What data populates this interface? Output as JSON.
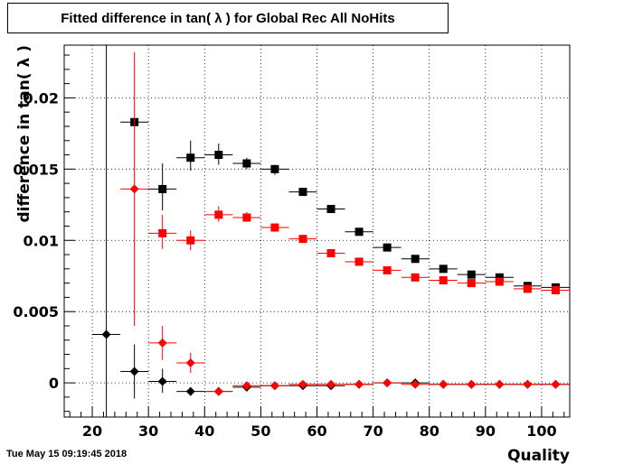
{
  "title": "Fitted difference in tan( λ ) for Global Rec All NoHits",
  "timestamp": "Tue May 15 09:19:45 2018",
  "chart_data": {
    "type": "scatter",
    "title": "Fitted difference in tan( λ ) for Global Rec All NoHits",
    "xlabel": "Quality",
    "ylabel": "difference in tan( λ )",
    "xlim": [
      15,
      105
    ],
    "ylim": [
      -0.0024,
      0.0237
    ],
    "grid": true,
    "x_ticks": [
      "20",
      "30",
      "40",
      "50",
      "60",
      "70",
      "80",
      "90",
      "100"
    ],
    "x_tick_values": [
      20,
      30,
      40,
      50,
      60,
      70,
      80,
      90,
      100
    ],
    "y_ticks": [
      "0",
      "0.005",
      "0.01",
      "0.015",
      "0.02"
    ],
    "y_tick_values": [
      0,
      0.005,
      0.01,
      0.015,
      0.02
    ],
    "series": [
      {
        "color": "#000000",
        "marker": "square",
        "points": [
          {
            "x": 27.5,
            "y": 0.0183,
            "xerr": 2.5,
            "ylo": 0.0183,
            "yhi": 0.0183
          },
          {
            "x": 32.5,
            "y": 0.0136,
            "xerr": 2.5,
            "ylo": 0.0121,
            "yhi": 0.0154
          },
          {
            "x": 37.5,
            "y": 0.0158,
            "xerr": 2.5,
            "ylo": 0.0149,
            "yhi": 0.017
          },
          {
            "x": 42.5,
            "y": 0.016,
            "xerr": 2.5,
            "ylo": 0.0153,
            "yhi": 0.0168
          },
          {
            "x": 47.5,
            "y": 0.0154,
            "xerr": 2.5,
            "ylo": 0.015,
            "yhi": 0.0158
          },
          {
            "x": 52.5,
            "y": 0.015,
            "xerr": 2.5,
            "ylo": 0.0146,
            "yhi": 0.0153
          },
          {
            "x": 57.5,
            "y": 0.0134,
            "xerr": 2.5,
            "ylo": 0.0132,
            "yhi": 0.0136
          },
          {
            "x": 62.5,
            "y": 0.0122,
            "xerr": 2.5,
            "ylo": 0.0121,
            "yhi": 0.0123
          },
          {
            "x": 67.5,
            "y": 0.0106,
            "xerr": 2.5,
            "ylo": 0.0105,
            "yhi": 0.0107
          },
          {
            "x": 72.5,
            "y": 0.0095,
            "xerr": 2.5,
            "ylo": 0.0094,
            "yhi": 0.0096
          },
          {
            "x": 77.5,
            "y": 0.0087,
            "xerr": 2.5,
            "ylo": 0.0086,
            "yhi": 0.0088
          },
          {
            "x": 82.5,
            "y": 0.008,
            "xerr": 2.5,
            "ylo": 0.0079,
            "yhi": 0.0081
          },
          {
            "x": 87.5,
            "y": 0.0076,
            "xerr": 2.5,
            "ylo": 0.0075,
            "yhi": 0.0077
          },
          {
            "x": 92.5,
            "y": 0.0074,
            "xerr": 2.5,
            "ylo": 0.0073,
            "yhi": 0.0075
          },
          {
            "x": 97.5,
            "y": 0.0068,
            "xerr": 2.5,
            "ylo": 0.0067,
            "yhi": 0.0069
          },
          {
            "x": 102.5,
            "y": 0.0067,
            "xerr": 2.5,
            "ylo": 0.0066,
            "yhi": 0.0068
          }
        ]
      },
      {
        "color": "#ff0000",
        "marker": "square",
        "points": [
          {
            "x": 32.5,
            "y": 0.0105,
            "xerr": 2.5,
            "ylo": 0.0094,
            "yhi": 0.0118
          },
          {
            "x": 37.5,
            "y": 0.01,
            "xerr": 2.5,
            "ylo": 0.0093,
            "yhi": 0.0107
          },
          {
            "x": 42.5,
            "y": 0.0118,
            "xerr": 2.5,
            "ylo": 0.0113,
            "yhi": 0.0124
          },
          {
            "x": 47.5,
            "y": 0.0116,
            "xerr": 2.5,
            "ylo": 0.0113,
            "yhi": 0.012
          },
          {
            "x": 52.5,
            "y": 0.0109,
            "xerr": 2.5,
            "ylo": 0.0107,
            "yhi": 0.0111
          },
          {
            "x": 57.5,
            "y": 0.0101,
            "xerr": 2.5,
            "ylo": 0.01,
            "yhi": 0.0102
          },
          {
            "x": 62.5,
            "y": 0.0091,
            "xerr": 2.5,
            "ylo": 0.009,
            "yhi": 0.0092
          },
          {
            "x": 67.5,
            "y": 0.0085,
            "xerr": 2.5,
            "ylo": 0.0084,
            "yhi": 0.0086
          },
          {
            "x": 72.5,
            "y": 0.0079,
            "xerr": 2.5,
            "ylo": 0.0078,
            "yhi": 0.008
          },
          {
            "x": 77.5,
            "y": 0.0074,
            "xerr": 2.5,
            "ylo": 0.0073,
            "yhi": 0.0075
          },
          {
            "x": 82.5,
            "y": 0.0072,
            "xerr": 2.5,
            "ylo": 0.0071,
            "yhi": 0.0073
          },
          {
            "x": 87.5,
            "y": 0.007,
            "xerr": 2.5,
            "ylo": 0.0069,
            "yhi": 0.0071
          },
          {
            "x": 92.5,
            "y": 0.0071,
            "xerr": 2.5,
            "ylo": 0.007,
            "yhi": 0.0072
          },
          {
            "x": 97.5,
            "y": 0.0066,
            "xerr": 2.5,
            "ylo": 0.0065,
            "yhi": 0.0067
          },
          {
            "x": 102.5,
            "y": 0.0065,
            "xerr": 2.5,
            "ylo": 0.0064,
            "yhi": 0.0066
          }
        ]
      },
      {
        "color": "#000000",
        "marker": "diamond",
        "points": [
          {
            "x": 22.5,
            "y": 0.0034,
            "xerr": 2.5,
            "ylo": -0.0025,
            "yhi": 0.0237
          },
          {
            "x": 27.5,
            "y": 0.0008,
            "xerr": 2.5,
            "ylo": -0.0011,
            "yhi": 0.0027
          },
          {
            "x": 32.5,
            "y": 0.0001,
            "xerr": 2.5,
            "ylo": -0.0007,
            "yhi": 0.001
          },
          {
            "x": 37.5,
            "y": -0.0006,
            "xerr": 2.5,
            "ylo": -0.0009,
            "yhi": -0.0003
          },
          {
            "x": 42.5,
            "y": -0.0006,
            "xerr": 2.5,
            "ylo": -0.0008,
            "yhi": -0.0004
          },
          {
            "x": 47.5,
            "y": -0.0003,
            "xerr": 2.5,
            "ylo": -0.0004,
            "yhi": -0.0002
          },
          {
            "x": 52.5,
            "y": -0.0002,
            "xerr": 2.5,
            "ylo": -0.0003,
            "yhi": -0.0001
          },
          {
            "x": 57.5,
            "y": -0.0002,
            "xerr": 2.5,
            "ylo": -0.0003,
            "yhi": -0.0001
          },
          {
            "x": 62.5,
            "y": -0.0002,
            "xerr": 2.5,
            "ylo": -0.0003,
            "yhi": -0.0001
          },
          {
            "x": 67.5,
            "y": -0.0001,
            "xerr": 2.5,
            "ylo": -0.0002,
            "yhi": 0.0
          },
          {
            "x": 72.5,
            "y": 0.0,
            "xerr": 2.5,
            "ylo": -0.0001,
            "yhi": 0.0001
          },
          {
            "x": 77.5,
            "y": 0.0,
            "xerr": 2.5,
            "ylo": -0.0001,
            "yhi": 0.0001
          },
          {
            "x": 82.5,
            "y": -0.0001,
            "xerr": 2.5,
            "ylo": -0.0002,
            "yhi": 0.0
          },
          {
            "x": 87.5,
            "y": -0.0001,
            "xerr": 2.5,
            "ylo": -0.0002,
            "yhi": 0.0
          },
          {
            "x": 92.5,
            "y": -0.0001,
            "xerr": 2.5,
            "ylo": -0.0002,
            "yhi": 0.0
          },
          {
            "x": 97.5,
            "y": -0.0001,
            "xerr": 2.5,
            "ylo": -0.0002,
            "yhi": 0.0
          },
          {
            "x": 102.5,
            "y": -0.0001,
            "xerr": 2.5,
            "ylo": -0.0002,
            "yhi": 0.0
          }
        ]
      },
      {
        "color": "#ff0000",
        "marker": "diamond",
        "points": [
          {
            "x": 27.5,
            "y": 0.0136,
            "xerr": 2.5,
            "ylo": 0.004,
            "yhi": 0.0232
          },
          {
            "x": 32.5,
            "y": 0.0028,
            "xerr": 2.5,
            "ylo": 0.0016,
            "yhi": 0.004
          },
          {
            "x": 37.5,
            "y": 0.0014,
            "xerr": 2.5,
            "ylo": 0.0007,
            "yhi": 0.0021
          },
          {
            "x": 42.5,
            "y": -0.0006,
            "xerr": 2.5,
            "ylo": -0.0009,
            "yhi": -0.0003
          },
          {
            "x": 47.5,
            "y": -0.0002,
            "xerr": 2.5,
            "ylo": -0.0004,
            "yhi": 0.0
          },
          {
            "x": 52.5,
            "y": -0.0002,
            "xerr": 2.5,
            "ylo": -0.0003,
            "yhi": -0.0001
          },
          {
            "x": 57.5,
            "y": -0.0001,
            "xerr": 2.5,
            "ylo": -0.0002,
            "yhi": 0.0
          },
          {
            "x": 62.5,
            "y": -0.0001,
            "xerr": 2.5,
            "ylo": -0.0002,
            "yhi": 0.0
          },
          {
            "x": 67.5,
            "y": -0.0001,
            "xerr": 2.5,
            "ylo": -0.0002,
            "yhi": 0.0
          },
          {
            "x": 72.5,
            "y": 0.0,
            "xerr": 2.5,
            "ylo": -0.0001,
            "yhi": 0.0001
          },
          {
            "x": 77.5,
            "y": -0.0001,
            "xerr": 2.5,
            "ylo": -0.0002,
            "yhi": 0.0
          },
          {
            "x": 82.5,
            "y": -0.0001,
            "xerr": 2.5,
            "ylo": -0.0002,
            "yhi": 0.0
          },
          {
            "x": 87.5,
            "y": -0.0001,
            "xerr": 2.5,
            "ylo": -0.0002,
            "yhi": 0.0
          },
          {
            "x": 92.5,
            "y": -0.0001,
            "xerr": 2.5,
            "ylo": -0.0002,
            "yhi": 0.0
          },
          {
            "x": 97.5,
            "y": -0.0001,
            "xerr": 2.5,
            "ylo": -0.0002,
            "yhi": 0.0
          },
          {
            "x": 102.5,
            "y": -0.0001,
            "xerr": 2.5,
            "ylo": -0.0002,
            "yhi": 0.0
          }
        ]
      }
    ]
  }
}
